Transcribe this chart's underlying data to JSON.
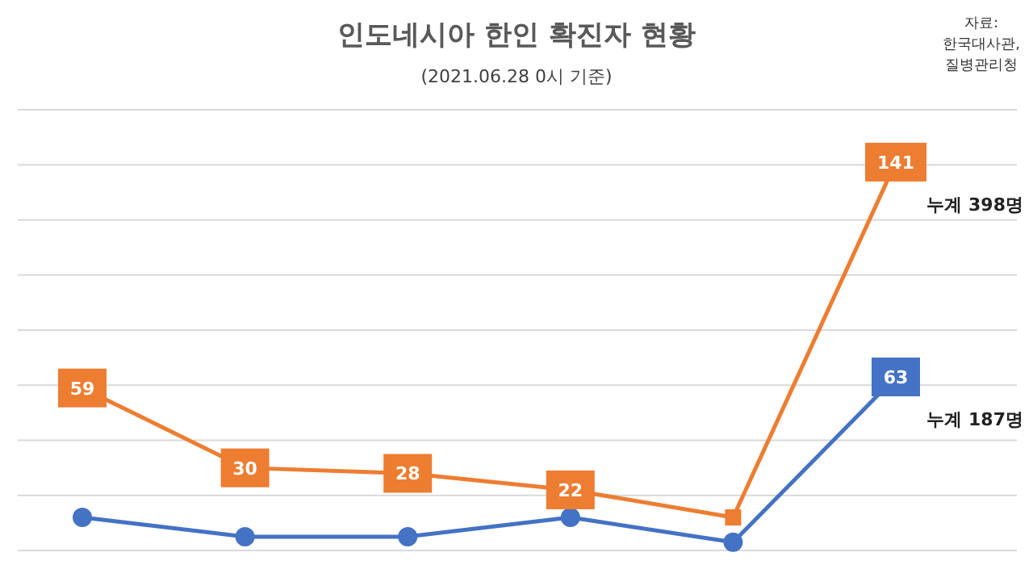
{
  "chart_data": {
    "type": "line",
    "title": "인도네시아 한인 확진자 현황",
    "subtitle": "(2021.06.28 0시 기준)",
    "categories": [
      null,
      null,
      null,
      null,
      null,
      null
    ],
    "series": [
      {
        "color": "#ed7d31",
        "marker": "square",
        "values": [
          59,
          30,
          28,
          22,
          12,
          141
        ],
        "value_labels": [
          "59",
          "30",
          "28",
          "22",
          null,
          "141"
        ]
      },
      {
        "color": "#4472c4",
        "marker": "circle",
        "values": [
          12,
          5,
          5,
          12,
          3,
          63
        ],
        "value_labels": [
          null,
          null,
          null,
          null,
          null,
          "63"
        ]
      }
    ],
    "annotations": [
      "누계 398명",
      "누계 187명",
      "자료:\n한국대사관,\n질병관리청"
    ],
    "grid": "y",
    "tick_labels": false,
    "legend": false,
    "line_style": "solid"
  }
}
